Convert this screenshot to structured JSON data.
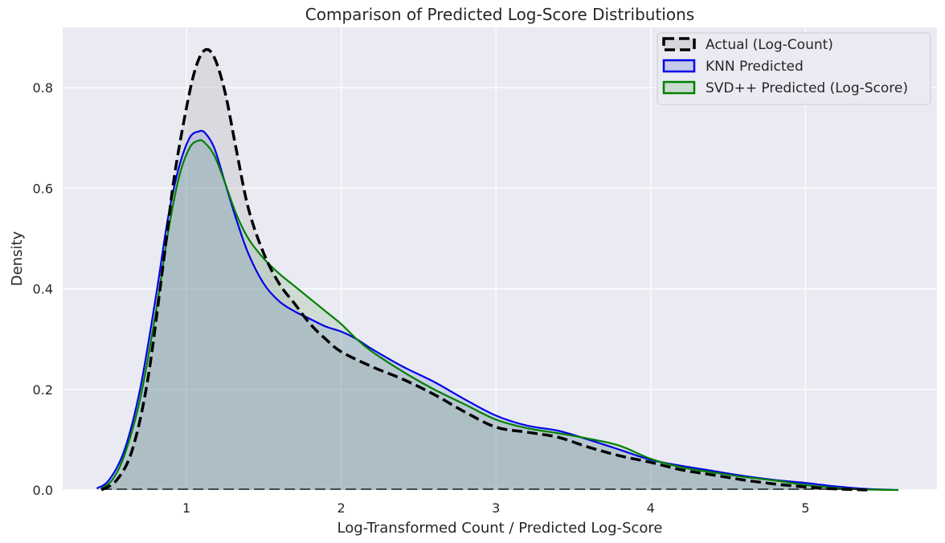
{
  "chart_data": {
    "type": "area",
    "title": "Comparison of Predicted Log-Score Distributions",
    "xlabel": "Log-Transformed Count / Predicted Log-Score",
    "ylabel": "Density",
    "xlim": [
      0.2,
      5.85
    ],
    "ylim": [
      0,
      0.92
    ],
    "xticks": [
      1,
      2,
      3,
      4,
      5
    ],
    "yticks": [
      0.0,
      0.2,
      0.4,
      0.6,
      0.8
    ],
    "xtick_labels": [
      "1",
      "2",
      "3",
      "4",
      "5"
    ],
    "ytick_labels": [
      "0.0",
      "0.2",
      "0.4",
      "0.6",
      "0.8"
    ],
    "grid": true,
    "legend_position": "top-right",
    "colors": {
      "background": "#eaeaf2",
      "grid": "#ffffff"
    },
    "series": [
      {
        "name": "Actual (Log-Count)",
        "line_color": "#000000",
        "fill_color": "#a8a8a8",
        "line_style": "dashed",
        "x": [
          0.45,
          0.55,
          0.65,
          0.75,
          0.85,
          0.92,
          1.0,
          1.06,
          1.12,
          1.18,
          1.25,
          1.32,
          1.4,
          1.5,
          1.6,
          1.7,
          1.8,
          1.9,
          2.0,
          2.2,
          2.4,
          2.6,
          2.8,
          3.0,
          3.2,
          3.4,
          3.6,
          3.8,
          4.0,
          4.2,
          4.4,
          4.6,
          4.8,
          5.0,
          5.2,
          5.4
        ],
        "y": [
          0.0,
          0.02,
          0.08,
          0.22,
          0.45,
          0.62,
          0.76,
          0.84,
          0.875,
          0.86,
          0.79,
          0.68,
          0.56,
          0.47,
          0.41,
          0.37,
          0.33,
          0.3,
          0.275,
          0.245,
          0.22,
          0.19,
          0.155,
          0.125,
          0.115,
          0.105,
          0.085,
          0.068,
          0.055,
          0.04,
          0.03,
          0.02,
          0.012,
          0.006,
          0.002,
          0.0
        ]
      },
      {
        "name": "KNN Predicted",
        "line_color": "#0000e6",
        "fill_color": "#6f7fd8",
        "line_style": "solid",
        "x": [
          0.42,
          0.5,
          0.6,
          0.7,
          0.8,
          0.88,
          0.95,
          1.02,
          1.08,
          1.12,
          1.18,
          1.25,
          1.32,
          1.4,
          1.5,
          1.6,
          1.7,
          1.8,
          1.9,
          2.0,
          2.1,
          2.2,
          2.4,
          2.6,
          2.8,
          3.0,
          3.2,
          3.4,
          3.6,
          3.8,
          4.0,
          4.2,
          4.4,
          4.6,
          4.8,
          5.0,
          5.2,
          5.4,
          5.6
        ],
        "y": [
          0.003,
          0.02,
          0.08,
          0.2,
          0.38,
          0.54,
          0.64,
          0.7,
          0.713,
          0.71,
          0.68,
          0.61,
          0.54,
          0.47,
          0.41,
          0.375,
          0.355,
          0.34,
          0.325,
          0.315,
          0.3,
          0.28,
          0.245,
          0.215,
          0.18,
          0.148,
          0.128,
          0.118,
          0.1,
          0.08,
          0.06,
          0.048,
          0.038,
          0.028,
          0.02,
          0.014,
          0.007,
          0.002,
          0.0
        ]
      },
      {
        "name": "SVD++ Predicted (Log-Score)",
        "line_color": "#008000",
        "fill_color": "#7fb57f",
        "line_style": "solid",
        "x": [
          0.45,
          0.52,
          0.6,
          0.7,
          0.8,
          0.88,
          0.95,
          1.02,
          1.08,
          1.12,
          1.18,
          1.25,
          1.32,
          1.4,
          1.5,
          1.6,
          1.7,
          1.8,
          1.9,
          2.0,
          2.1,
          2.2,
          2.4,
          2.6,
          2.8,
          3.0,
          3.2,
          3.4,
          3.6,
          3.8,
          4.0,
          4.2,
          4.4,
          4.6,
          4.8,
          5.0,
          5.2,
          5.4,
          5.6
        ],
        "y": [
          0.003,
          0.02,
          0.07,
          0.18,
          0.35,
          0.51,
          0.62,
          0.68,
          0.695,
          0.69,
          0.665,
          0.61,
          0.55,
          0.5,
          0.46,
          0.43,
          0.405,
          0.38,
          0.355,
          0.33,
          0.3,
          0.275,
          0.235,
          0.2,
          0.17,
          0.14,
          0.123,
          0.113,
          0.102,
          0.088,
          0.062,
          0.045,
          0.035,
          0.026,
          0.019,
          0.01,
          0.004,
          0.001,
          0.0
        ]
      }
    ]
  }
}
